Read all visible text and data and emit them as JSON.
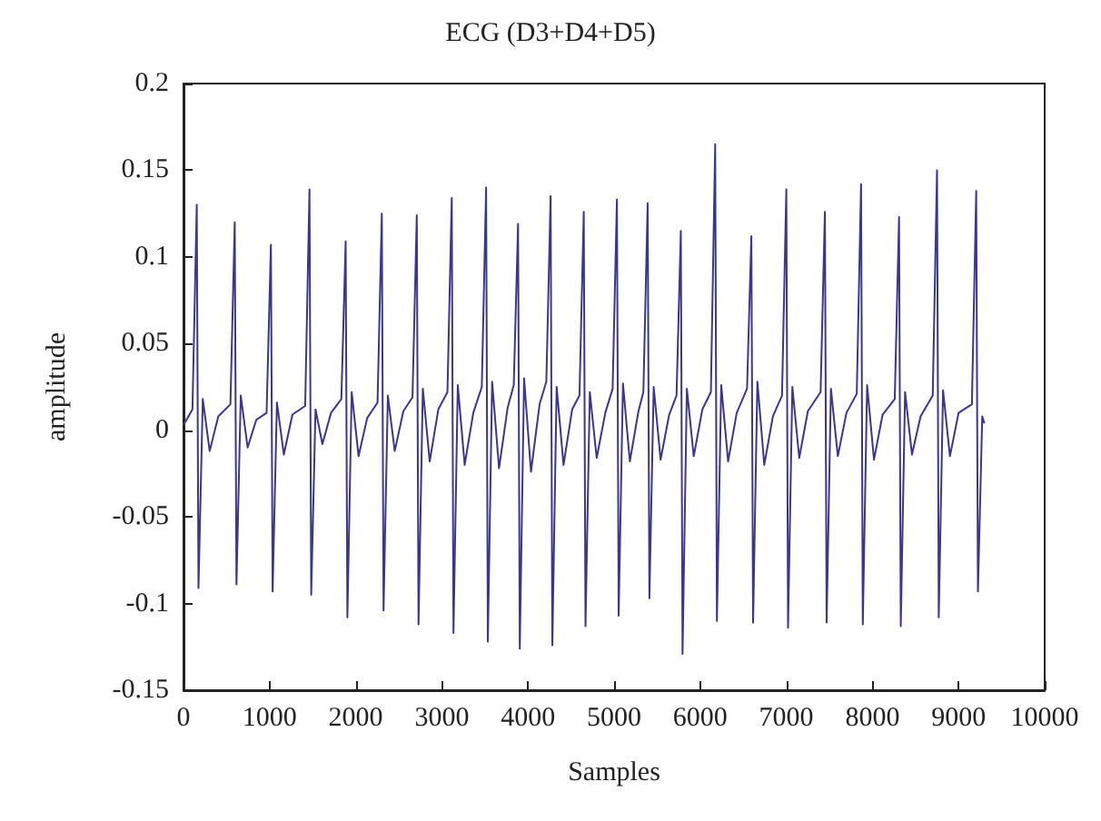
{
  "chart_data": {
    "type": "line",
    "title": "ECG (D3+D4+D5)",
    "xlabel": "Samples",
    "ylabel": "amplitude",
    "xlim": [
      0,
      10000
    ],
    "xticks": [
      0,
      1000,
      2000,
      3000,
      4000,
      5000,
      6000,
      7000,
      8000,
      9000,
      10000
    ],
    "ylim": [
      -0.15,
      0.2
    ],
    "yticks": [
      -0.15,
      -0.1,
      -0.05,
      0,
      0.05,
      0.1,
      0.15,
      0.2
    ],
    "grid": false,
    "marker": "none",
    "line_style": "solid",
    "series": [
      {
        "color": "#3d3591",
        "x": [
          0,
          104,
          154,
          174,
          224,
          304,
          404,
          545,
          595,
          615,
          665,
          745,
          845,
          965,
          1015,
          1035,
          1085,
          1165,
          1265,
          1413,
          1463,
          1483,
          1533,
          1613,
          1713,
          1833,
          1883,
          1903,
          1953,
          2033,
          2133,
          2253,
          2303,
          2323,
          2373,
          2453,
          2553,
          2659,
          2709,
          2729,
          2779,
          2859,
          2959,
          3065,
          3115,
          3135,
          3185,
          3265,
          3365,
          3464,
          3514,
          3534,
          3584,
          3664,
          3764,
          3835,
          3885,
          3905,
          3955,
          4035,
          4135,
          4213,
          4263,
          4283,
          4333,
          4413,
          4513,
          4598,
          4648,
          4668,
          4718,
          4798,
          4898,
          4983,
          5033,
          5053,
          5103,
          5183,
          5283,
          5340,
          5390,
          5410,
          5460,
          5540,
          5640,
          5725,
          5775,
          5795,
          5845,
          5925,
          6025,
          6124,
          6174,
          6194,
          6244,
          6324,
          6424,
          6544,
          6594,
          6614,
          6664,
          6744,
          6844,
          6950,
          7000,
          7020,
          7070,
          7150,
          7250,
          7398,
          7448,
          7468,
          7518,
          7598,
          7698,
          7818,
          7868,
          7888,
          7938,
          8018,
          8118,
          8259,
          8309,
          8329,
          8379,
          8459,
          8559,
          8700,
          8750,
          8770,
          8820,
          8900,
          9000,
          9155,
          9205,
          9225,
          9275,
          9300
        ],
        "values": [
          0.003,
          0.012,
          0.13,
          -0.091,
          0.018,
          -0.012,
          0.008,
          0.015,
          0.12,
          -0.089,
          0.02,
          -0.01,
          0.006,
          0.01,
          0.107,
          -0.093,
          0.016,
          -0.014,
          0.009,
          0.014,
          0.139,
          -0.095,
          0.012,
          -0.008,
          0.01,
          0.018,
          0.109,
          -0.108,
          0.022,
          -0.015,
          0.007,
          0.016,
          0.125,
          -0.104,
          0.02,
          -0.012,
          0.011,
          0.019,
          0.124,
          -0.112,
          0.024,
          -0.018,
          0.012,
          0.022,
          0.134,
          -0.117,
          0.026,
          -0.02,
          0.01,
          0.025,
          0.14,
          -0.122,
          0.028,
          -0.022,
          0.013,
          0.026,
          0.119,
          -0.126,
          0.03,
          -0.024,
          0.015,
          0.028,
          0.135,
          -0.124,
          0.025,
          -0.02,
          0.012,
          0.02,
          0.126,
          -0.113,
          0.022,
          -0.016,
          0.01,
          0.024,
          0.133,
          -0.107,
          0.027,
          -0.018,
          0.011,
          0.022,
          0.131,
          -0.097,
          0.025,
          -0.017,
          0.009,
          0.02,
          0.115,
          -0.129,
          0.024,
          -0.015,
          0.012,
          0.022,
          0.165,
          -0.11,
          0.026,
          -0.018,
          0.01,
          0.024,
          0.112,
          -0.111,
          0.028,
          -0.02,
          0.008,
          0.02,
          0.139,
          -0.114,
          0.025,
          -0.016,
          0.011,
          0.022,
          0.126,
          -0.111,
          0.024,
          -0.015,
          0.01,
          0.021,
          0.142,
          -0.112,
          0.026,
          -0.017,
          0.009,
          0.018,
          0.123,
          -0.113,
          0.022,
          -0.014,
          0.008,
          0.02,
          0.15,
          -0.108,
          0.023,
          -0.015,
          0.01,
          0.015,
          0.138,
          -0.093,
          0.008,
          0.004
        ]
      }
    ]
  }
}
